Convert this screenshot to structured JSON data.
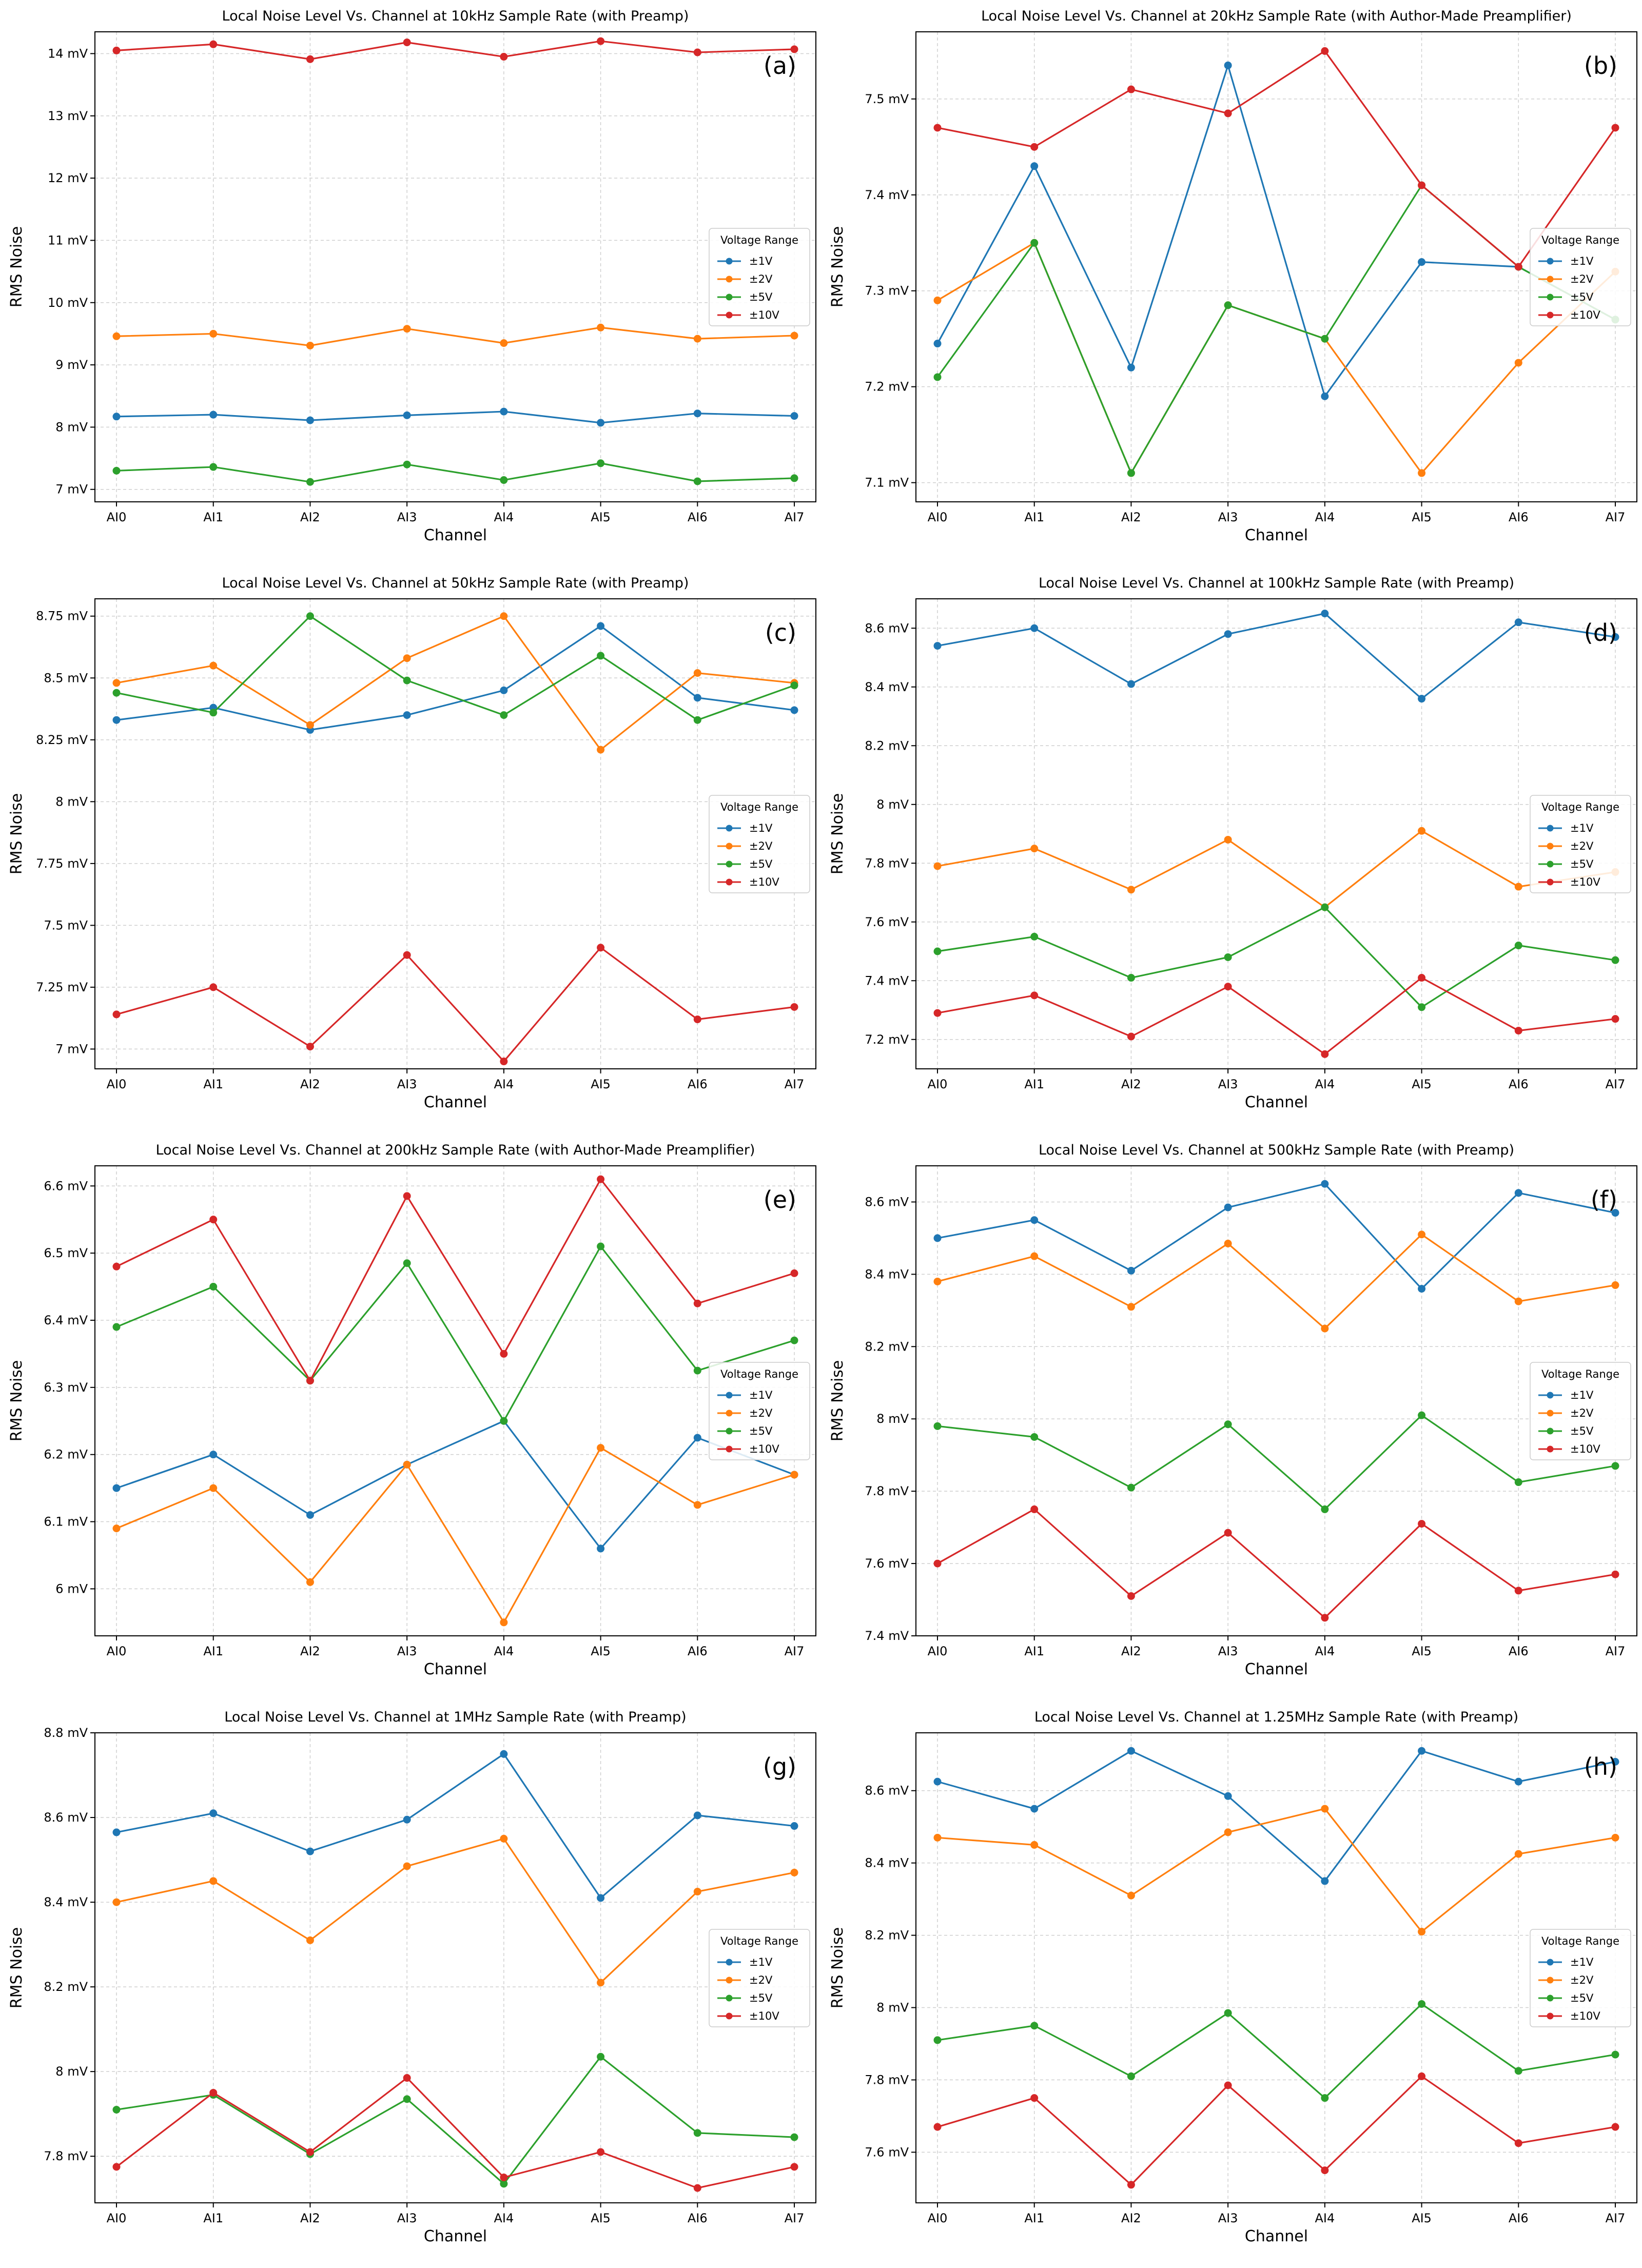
{
  "figure": {
    "series_colors": {
      "±1V": "#1f77b4",
      "±2V": "#ff7f0e",
      "±5V": "#2ca02c",
      "±10V": "#d62728"
    }
  },
  "chart_data": [
    {
      "type": "line",
      "letter": "(a)",
      "title": "Local Noise Level Vs. Channel at 10kHz Sample Rate (with Preamp)",
      "xlabel": "Channel",
      "ylabel": "RMS Noise",
      "categories": [
        "AI0",
        "AI1",
        "AI2",
        "AI3",
        "AI4",
        "AI5",
        "AI6",
        "AI7"
      ],
      "ylim": [
        6.8,
        14.35
      ],
      "yticks": [
        7,
        8,
        9,
        10,
        11,
        12,
        13,
        14
      ],
      "yticklabels": [
        "7 mV",
        "8 mV",
        "9 mV",
        "10 mV",
        "11 mV",
        "12 mV",
        "13 mV",
        "14 mV"
      ],
      "grid": true,
      "legend": {
        "title": "Voltage Range",
        "placement": "right-center"
      },
      "series": [
        {
          "name": "±1V",
          "color": "#1f77b4",
          "values": [
            8.17,
            8.2,
            8.11,
            8.19,
            8.25,
            8.07,
            8.22,
            8.18
          ]
        },
        {
          "name": "±2V",
          "color": "#ff7f0e",
          "values": [
            9.46,
            9.5,
            9.31,
            9.58,
            9.35,
            9.6,
            9.42,
            9.47
          ]
        },
        {
          "name": "±5V",
          "color": "#2ca02c",
          "values": [
            7.3,
            7.36,
            7.12,
            7.4,
            7.15,
            7.42,
            7.13,
            7.18
          ]
        },
        {
          "name": "±10V",
          "color": "#d62728",
          "values": [
            14.05,
            14.15,
            13.91,
            14.18,
            13.95,
            14.2,
            14.02,
            14.07
          ]
        }
      ]
    },
    {
      "type": "line",
      "letter": "(b)",
      "title": "Local Noise Level Vs. Channel at 20kHz Sample Rate (with Author-Made Preamplifier)",
      "xlabel": "Channel",
      "ylabel": "RMS Noise",
      "categories": [
        "AI0",
        "AI1",
        "AI2",
        "AI3",
        "AI4",
        "AI5",
        "AI6",
        "AI7"
      ],
      "ylim": [
        7.08,
        7.57
      ],
      "yticks": [
        7.1,
        7.2,
        7.3,
        7.4,
        7.5
      ],
      "yticklabels": [
        "7.1 mV",
        "7.2 mV",
        "7.3 mV",
        "7.4 mV",
        "7.5 mV"
      ],
      "grid": true,
      "legend": {
        "title": "Voltage Range",
        "placement": "right-center"
      },
      "series": [
        {
          "name": "±1V",
          "color": "#1f77b4",
          "values": [
            7.245,
            7.43,
            7.22,
            7.535,
            7.19,
            7.33,
            7.325,
            7.27
          ]
        },
        {
          "name": "±2V",
          "color": "#ff7f0e",
          "values": [
            7.29,
            7.35,
            7.11,
            7.285,
            7.25,
            7.11,
            7.225,
            7.32
          ]
        },
        {
          "name": "±5V",
          "color": "#2ca02c",
          "values": [
            7.21,
            7.35,
            7.11,
            7.285,
            7.25,
            7.41,
            7.325,
            7.27
          ]
        },
        {
          "name": "±10V",
          "color": "#d62728",
          "values": [
            7.47,
            7.45,
            7.51,
            7.485,
            7.55,
            7.41,
            7.325,
            7.47
          ]
        }
      ]
    },
    {
      "type": "line",
      "letter": "(c)",
      "title": "Local Noise Level Vs. Channel at 50kHz Sample Rate (with Preamp)",
      "xlabel": "Channel",
      "ylabel": "RMS Noise",
      "categories": [
        "AI0",
        "AI1",
        "AI2",
        "AI3",
        "AI4",
        "AI5",
        "AI6",
        "AI7"
      ],
      "ylim": [
        6.92,
        8.82
      ],
      "yticks": [
        7,
        7.25,
        7.5,
        7.75,
        8,
        8.25,
        8.5,
        8.75
      ],
      "yticklabels": [
        "7 mV",
        "7.25 mV",
        "7.5 mV",
        "7.75 mV",
        "8 mV",
        "8.25 mV",
        "8.5 mV",
        "8.75 mV"
      ],
      "grid": true,
      "legend": {
        "title": "Voltage Range",
        "placement": "right-center"
      },
      "series": [
        {
          "name": "±1V",
          "color": "#1f77b4",
          "values": [
            8.33,
            8.38,
            8.29,
            8.35,
            8.45,
            8.71,
            8.42,
            8.37
          ]
        },
        {
          "name": "±2V",
          "color": "#ff7f0e",
          "values": [
            8.48,
            8.55,
            8.31,
            8.58,
            8.75,
            8.21,
            8.52,
            8.48
          ]
        },
        {
          "name": "±5V",
          "color": "#2ca02c",
          "values": [
            8.44,
            8.36,
            8.75,
            8.49,
            8.35,
            8.59,
            8.33,
            8.47
          ]
        },
        {
          "name": "±10V",
          "color": "#d62728",
          "values": [
            7.14,
            7.25,
            7.01,
            7.38,
            6.95,
            7.41,
            7.12,
            7.17
          ]
        }
      ]
    },
    {
      "type": "line",
      "letter": "(d)",
      "title": "Local Noise Level Vs. Channel at 100kHz Sample Rate (with Preamp)",
      "xlabel": "Channel",
      "ylabel": "RMS Noise",
      "categories": [
        "AI0",
        "AI1",
        "AI2",
        "AI3",
        "AI4",
        "AI5",
        "AI6",
        "AI7"
      ],
      "ylim": [
        7.1,
        8.7
      ],
      "yticks": [
        7.2,
        7.4,
        7.6,
        7.8,
        8,
        8.2,
        8.4,
        8.6
      ],
      "yticklabels": [
        "7.2 mV",
        "7.4 mV",
        "7.6 mV",
        "7.8 mV",
        "8 mV",
        "8.2 mV",
        "8.4 mV",
        "8.6 mV"
      ],
      "grid": true,
      "legend": {
        "title": "Voltage Range",
        "placement": "right-center"
      },
      "series": [
        {
          "name": "±1V",
          "color": "#1f77b4",
          "values": [
            8.54,
            8.6,
            8.41,
            8.58,
            8.65,
            8.36,
            8.62,
            8.57
          ]
        },
        {
          "name": "±2V",
          "color": "#ff7f0e",
          "values": [
            7.79,
            7.85,
            7.71,
            7.88,
            7.65,
            7.91,
            7.72,
            7.77
          ]
        },
        {
          "name": "±5V",
          "color": "#2ca02c",
          "values": [
            7.5,
            7.55,
            7.41,
            7.48,
            7.65,
            7.31,
            7.52,
            7.47
          ]
        },
        {
          "name": "±10V",
          "color": "#d62728",
          "values": [
            7.29,
            7.35,
            7.21,
            7.38,
            7.15,
            7.41,
            7.23,
            7.27
          ]
        }
      ]
    },
    {
      "type": "line",
      "letter": "(e)",
      "title": "Local Noise Level Vs. Channel at 200kHz Sample Rate (with Author-Made Preamplifier)",
      "xlabel": "Channel",
      "ylabel": "RMS Noise",
      "categories": [
        "AI0",
        "AI1",
        "AI2",
        "AI3",
        "AI4",
        "AI5",
        "AI6",
        "AI7"
      ],
      "ylim": [
        5.93,
        6.63
      ],
      "yticks": [
        6,
        6.1,
        6.2,
        6.3,
        6.4,
        6.5,
        6.6
      ],
      "yticklabels": [
        "6 mV",
        "6.1 mV",
        "6.2 mV",
        "6.3 mV",
        "6.4 mV",
        "6.5 mV",
        "6.6 mV"
      ],
      "grid": true,
      "legend": {
        "title": "Voltage Range",
        "placement": "right-center"
      },
      "series": [
        {
          "name": "±1V",
          "color": "#1f77b4",
          "values": [
            6.15,
            6.2,
            6.11,
            6.185,
            6.25,
            6.06,
            6.225,
            6.17
          ]
        },
        {
          "name": "±2V",
          "color": "#ff7f0e",
          "values": [
            6.09,
            6.15,
            6.01,
            6.185,
            5.95,
            6.21,
            6.125,
            6.17
          ]
        },
        {
          "name": "±5V",
          "color": "#2ca02c",
          "values": [
            6.39,
            6.45,
            6.31,
            6.485,
            6.25,
            6.51,
            6.325,
            6.37
          ]
        },
        {
          "name": "±10V",
          "color": "#d62728",
          "values": [
            6.48,
            6.55,
            6.31,
            6.585,
            6.35,
            6.61,
            6.425,
            6.47
          ]
        }
      ]
    },
    {
      "type": "line",
      "letter": "(f)",
      "title": "Local Noise Level Vs. Channel at 500kHz Sample Rate (with Preamp)",
      "xlabel": "Channel",
      "ylabel": "RMS Noise",
      "categories": [
        "AI0",
        "AI1",
        "AI2",
        "AI3",
        "AI4",
        "AI5",
        "AI6",
        "AI7"
      ],
      "ylim": [
        7.4,
        8.7
      ],
      "yticks": [
        7.4,
        7.6,
        7.8,
        8,
        8.2,
        8.4,
        8.6
      ],
      "yticklabels": [
        "7.4 mV",
        "7.6 mV",
        "7.8 mV",
        "8 mV",
        "8.2 mV",
        "8.4 mV",
        "8.6 mV"
      ],
      "grid": true,
      "legend": {
        "title": "Voltage Range",
        "placement": "right-center"
      },
      "series": [
        {
          "name": "±1V",
          "color": "#1f77b4",
          "values": [
            8.5,
            8.55,
            8.41,
            8.585,
            8.65,
            8.36,
            8.625,
            8.57
          ]
        },
        {
          "name": "±2V",
          "color": "#ff7f0e",
          "values": [
            8.38,
            8.45,
            8.31,
            8.485,
            8.25,
            8.51,
            8.325,
            8.37
          ]
        },
        {
          "name": "±5V",
          "color": "#2ca02c",
          "values": [
            7.98,
            7.95,
            7.81,
            7.985,
            7.75,
            8.01,
            7.825,
            7.87
          ]
        },
        {
          "name": "±10V",
          "color": "#d62728",
          "values": [
            7.6,
            7.75,
            7.51,
            7.685,
            7.45,
            7.71,
            7.525,
            7.57
          ]
        }
      ]
    },
    {
      "type": "line",
      "letter": "(g)",
      "title": "Local Noise Level Vs. Channel at 1MHz Sample Rate (with Preamp)",
      "xlabel": "Channel",
      "ylabel": "RMS Noise",
      "categories": [
        "AI0",
        "AI1",
        "AI2",
        "AI3",
        "AI4",
        "AI5",
        "AI6",
        "AI7"
      ],
      "ylim": [
        7.69,
        8.8
      ],
      "yticks": [
        7.8,
        8,
        8.2,
        8.4,
        8.6,
        8.8
      ],
      "yticklabels": [
        "7.8 mV",
        "8 mV",
        "8.2 mV",
        "8.4 mV",
        "8.6 mV",
        "8.8 mV"
      ],
      "grid": true,
      "legend": {
        "title": "Voltage Range",
        "placement": "right-center"
      },
      "series": [
        {
          "name": "±1V",
          "color": "#1f77b4",
          "values": [
            8.565,
            8.61,
            8.52,
            8.595,
            8.75,
            8.41,
            8.605,
            8.58
          ]
        },
        {
          "name": "±2V",
          "color": "#ff7f0e",
          "values": [
            8.4,
            8.45,
            8.31,
            8.485,
            8.55,
            8.21,
            8.425,
            8.47
          ]
        },
        {
          "name": "±5V",
          "color": "#2ca02c",
          "values": [
            7.91,
            7.945,
            7.805,
            7.935,
            7.735,
            8.035,
            7.855,
            7.845
          ]
        },
        {
          "name": "±10V",
          "color": "#d62728",
          "values": [
            7.775,
            7.95,
            7.81,
            7.985,
            7.75,
            7.81,
            7.725,
            7.775
          ]
        }
      ]
    },
    {
      "type": "line",
      "letter": "(h)",
      "title": "Local Noise Level Vs. Channel at 1.25MHz Sample Rate (with Preamp)",
      "xlabel": "Channel",
      "ylabel": "RMS Noise",
      "categories": [
        "AI0",
        "AI1",
        "AI2",
        "AI3",
        "AI4",
        "AI5",
        "AI6",
        "AI7"
      ],
      "ylim": [
        7.46,
        8.76
      ],
      "yticks": [
        7.6,
        7.8,
        8,
        8.2,
        8.4,
        8.6
      ],
      "yticklabels": [
        "7.6 mV",
        "7.8 mV",
        "8 mV",
        "8.2 mV",
        "8.4 mV",
        "8.6 mV"
      ],
      "grid": true,
      "legend": {
        "title": "Voltage Range",
        "placement": "right-center"
      },
      "series": [
        {
          "name": "±1V",
          "color": "#1f77b4",
          "values": [
            8.625,
            8.55,
            8.71,
            8.585,
            8.35,
            8.71,
            8.625,
            8.68
          ]
        },
        {
          "name": "±2V",
          "color": "#ff7f0e",
          "values": [
            8.47,
            8.45,
            8.31,
            8.485,
            8.55,
            8.21,
            8.425,
            8.47
          ]
        },
        {
          "name": "±5V",
          "color": "#2ca02c",
          "values": [
            7.91,
            7.95,
            7.81,
            7.985,
            7.75,
            8.01,
            7.825,
            7.87
          ]
        },
        {
          "name": "±10V",
          "color": "#d62728",
          "values": [
            7.67,
            7.75,
            7.51,
            7.785,
            7.55,
            7.81,
            7.625,
            7.67
          ]
        }
      ]
    }
  ]
}
